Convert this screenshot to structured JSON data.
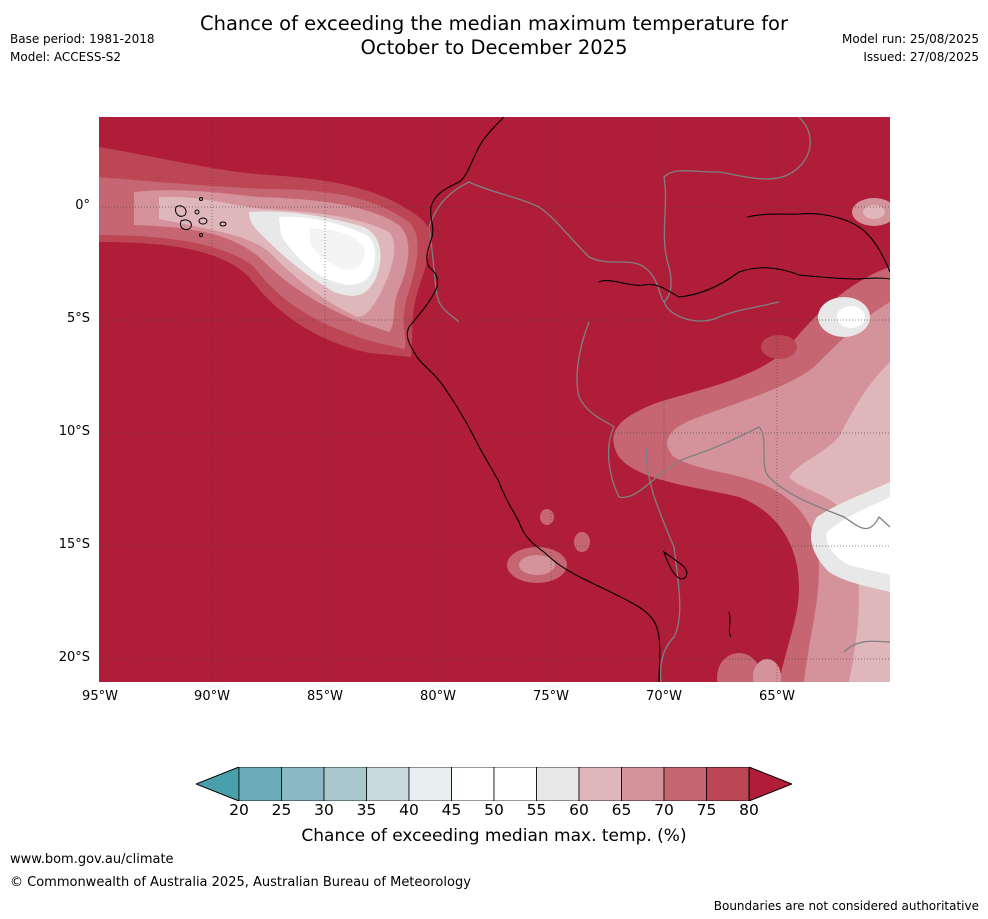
{
  "header": {
    "title_line1": "Chance of exceeding the median maximum temperature for",
    "title_line2": "October to December 2025",
    "base_period": "Base period: 1981-2018",
    "model": "Model: ACCESS-S2",
    "model_run": "Model run: 25/08/2025",
    "issued": "Issued: 27/08/2025"
  },
  "map": {
    "lat_labels": [
      "0°",
      "5°S",
      "10°S",
      "15°S",
      "20°S"
    ],
    "lon_labels": [
      "95°W",
      "90°W",
      "85°W",
      "80°W",
      "75°W",
      "70°W",
      "65°W"
    ],
    "background_category": "75-80+",
    "colors": {
      "lt20": "#4aa0aa",
      "c20_25": "#6aacb8",
      "c25_30": "#8ab8c4",
      "c30_35": "#a9c7cd",
      "c35_40": "#c9d8da",
      "c40_45": "#e9eef0",
      "c45_55": "#ffffff",
      "c55_60": "#e8e8e8",
      "c60_65": "#dfb6ba",
      "c65_70": "#d4929a",
      "c70_75": "#c66672",
      "c75_80": "#bc4654",
      "gt80": "#b01d38"
    }
  },
  "colorbar": {
    "ticks": [
      "20",
      "25",
      "30",
      "35",
      "40",
      "45",
      "50",
      "55",
      "60",
      "65",
      "70",
      "75",
      "80"
    ],
    "colors": [
      "#6aacb8",
      "#8ab8c4",
      "#a9c7cd",
      "#c9d8da",
      "#e9eef0",
      "#ffffff",
      "#ffffff",
      "#e8e8e8",
      "#dfb6ba",
      "#d4929a",
      "#c66672",
      "#bc4654"
    ],
    "low_extend_color": "#4aa0aa",
    "high_extend_color": "#b01d38",
    "label": "Chance of exceeding median max. temp. (%)"
  },
  "footer": {
    "website": "www.bom.gov.au/climate",
    "copyright": "© Commonwealth of Australia 2025, Australian Bureau of Meteorology",
    "disclaimer": "Boundaries are not considered authoritative"
  }
}
